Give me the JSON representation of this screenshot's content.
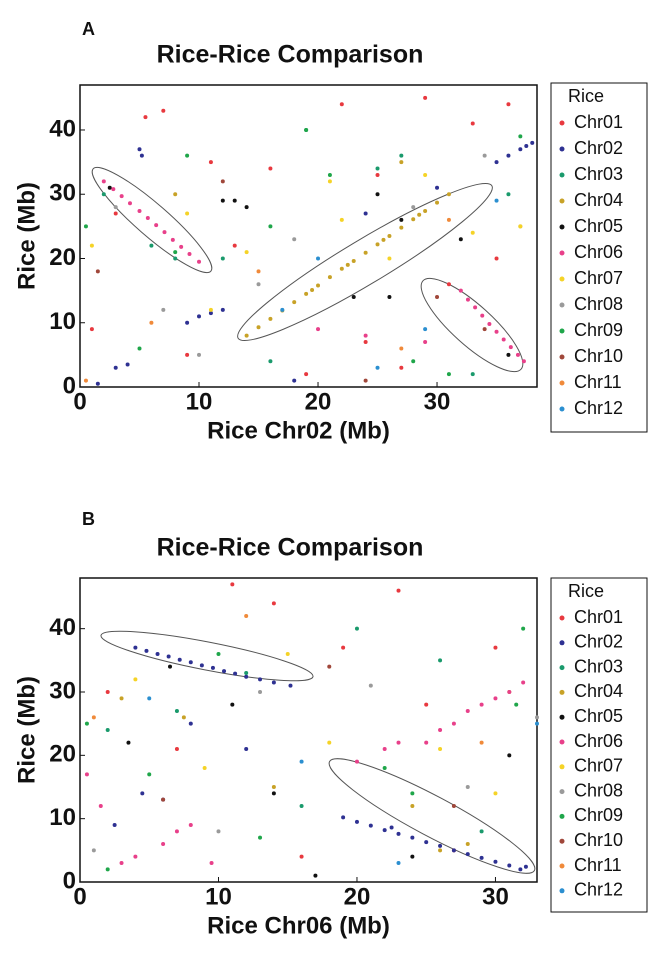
{
  "chart_data": [
    {
      "type": "scatter",
      "panel_label": "A",
      "title": "Rice-Rice Comparison",
      "xlabel": "Rice Chr02 (Mb)",
      "ylabel": "Rice (Mb)",
      "legend_title": "Rice",
      "xlim": [
        0,
        38.4
      ],
      "ylim": [
        0,
        47
      ],
      "xticks": [
        0,
        10,
        20,
        30
      ],
      "yticks": [
        0,
        10,
        20,
        30,
        40
      ],
      "series": [
        {
          "name": "Chr01",
          "color": "#e8393f",
          "x": [
            5.5,
            7,
            11,
            16,
            22,
            29,
            33,
            36,
            3,
            9,
            24,
            27,
            31,
            1,
            13,
            19,
            35,
            25
          ],
          "y": [
            42,
            43,
            35,
            34,
            44,
            45,
            41,
            44,
            27,
            5,
            7,
            3,
            16,
            9,
            22,
            2,
            20,
            33
          ]
        },
        {
          "name": "Chr02",
          "color": "#2e3192",
          "x": [
            5,
            5.2,
            35,
            36,
            37,
            37.5,
            38,
            9,
            10,
            11,
            12,
            3,
            4,
            18,
            1.5,
            24,
            30
          ],
          "y": [
            37,
            36,
            35,
            36,
            37,
            37.5,
            38,
            10,
            11,
            11.5,
            12,
            3,
            3.5,
            1,
            0.5,
            27,
            31
          ]
        },
        {
          "name": "Chr03",
          "color": "#1a9a6c",
          "x": [
            6,
            8,
            2,
            27,
            33,
            19,
            12,
            25,
            36,
            16
          ],
          "y": [
            22,
            20,
            30,
            36,
            2,
            40,
            20,
            34,
            30,
            4
          ]
        },
        {
          "name": "Chr04",
          "color": "#c8a227",
          "x": [
            14,
            15,
            16,
            17,
            18,
            19,
            20,
            21,
            22,
            23,
            24,
            25,
            26,
            27,
            28,
            29,
            30,
            31,
            19.5,
            22.5,
            25.5,
            28.5,
            27,
            37,
            8
          ],
          "y": [
            8,
            9.3,
            10.6,
            11.9,
            13.2,
            14.5,
            15.8,
            17.1,
            18.4,
            19.6,
            20.9,
            22.2,
            23.5,
            24.8,
            26.1,
            27.4,
            28.7,
            30,
            15.1,
            19,
            22.9,
            26.8,
            35,
            25,
            30
          ]
        },
        {
          "name": "Chr05",
          "color": "#111111",
          "x": [
            2.5,
            12,
            13,
            14,
            25,
            27,
            32,
            36,
            26,
            23
          ],
          "y": [
            31,
            29,
            29,
            28,
            30,
            26,
            23,
            5,
            14,
            14
          ]
        },
        {
          "name": "Chr06",
          "color": "#e8408a",
          "x": [
            2,
            2.8,
            3.5,
            4.2,
            5,
            5.7,
            6.4,
            7.1,
            7.8,
            8.5,
            9.2,
            10,
            32,
            32.6,
            33.2,
            33.8,
            34.4,
            35,
            35.6,
            36.2,
            36.8,
            37.3,
            20,
            24,
            29
          ],
          "y": [
            32,
            30.8,
            29.7,
            28.6,
            27.4,
            26.3,
            25.2,
            24.1,
            22.9,
            21.8,
            20.7,
            19.5,
            15,
            13.6,
            12.4,
            11.1,
            9.8,
            8.6,
            7.4,
            6.2,
            5,
            4,
            9,
            8,
            7
          ]
        },
        {
          "name": "Chr07",
          "color": "#f5d327",
          "x": [
            1,
            9,
            14,
            21,
            26,
            29,
            33,
            37,
            11,
            22
          ],
          "y": [
            22,
            27,
            21,
            32,
            20,
            33,
            24,
            25,
            12,
            26
          ]
        },
        {
          "name": "Chr08",
          "color": "#9a9a9a",
          "x": [
            3,
            10,
            18,
            28,
            34,
            15,
            7
          ],
          "y": [
            28,
            5,
            23,
            28,
            36,
            16,
            12
          ]
        },
        {
          "name": "Chr09",
          "color": "#1fa64a",
          "x": [
            0.5,
            5,
            8,
            19,
            21,
            31,
            37,
            16,
            28,
            9
          ],
          "y": [
            25,
            6,
            21,
            40,
            33,
            2,
            39,
            25,
            4,
            36
          ]
        },
        {
          "name": "Chr10",
          "color": "#a0473a",
          "x": [
            1.5,
            12,
            30,
            34,
            24
          ],
          "y": [
            18,
            32,
            14,
            9,
            1
          ]
        },
        {
          "name": "Chr11",
          "color": "#f08a3a",
          "x": [
            0.5,
            6,
            15,
            27,
            31
          ],
          "y": [
            1,
            10,
            18,
            6,
            26
          ]
        },
        {
          "name": "Chr12",
          "color": "#2b8fd0",
          "x": [
            17,
            20,
            25,
            29,
            35
          ],
          "y": [
            12,
            20,
            3,
            9,
            29
          ]
        }
      ]
    },
    {
      "type": "scatter",
      "panel_label": "B",
      "title": "Rice-Rice Comparison",
      "xlabel": "Rice Chr06 (Mb)",
      "ylabel": "Rice (Mb)",
      "legend_title": "Rice",
      "xlim": [
        0,
        33
      ],
      "ylim": [
        0,
        48
      ],
      "xticks": [
        0,
        10,
        20,
        30
      ],
      "yticks": [
        0,
        10,
        20,
        30,
        40
      ],
      "series": [
        {
          "name": "Chr01",
          "color": "#e8393f",
          "x": [
            11,
            14,
            23,
            19,
            27,
            2,
            7,
            30,
            25,
            16
          ],
          "y": [
            47,
            44,
            46,
            37,
            5,
            30,
            21,
            37,
            28,
            4
          ]
        },
        {
          "name": "Chr02",
          "color": "#2e3192",
          "x": [
            4,
            4.8,
            5.6,
            6.4,
            7.2,
            8,
            8.8,
            9.6,
            10.4,
            11.2,
            12,
            13,
            14,
            15.2,
            19,
            20,
            21,
            22,
            23,
            24,
            25,
            26,
            27,
            28,
            29,
            30,
            31,
            31.8,
            32.2,
            22.5,
            2.5,
            4.5,
            6,
            8,
            12
          ],
          "y": [
            37,
            36.5,
            36,
            35.6,
            35.1,
            34.7,
            34.2,
            33.8,
            33.3,
            32.9,
            32.4,
            32,
            31.5,
            31,
            10.2,
            9.5,
            8.9,
            8.2,
            7.6,
            7,
            6.3,
            5.7,
            5,
            4.4,
            3.8,
            3.2,
            2.6,
            2,
            2.4,
            8.6,
            9,
            14,
            13,
            25,
            21
          ]
        },
        {
          "name": "Chr03",
          "color": "#1a9a6c",
          "x": [
            2,
            12,
            20,
            26,
            29,
            7,
            16
          ],
          "y": [
            24,
            33,
            40,
            35,
            8,
            27,
            12
          ]
        },
        {
          "name": "Chr04",
          "color": "#c8a227",
          "x": [
            3,
            7.5,
            14,
            24,
            31,
            26,
            28
          ],
          "y": [
            29,
            26,
            15,
            12,
            30,
            5,
            6
          ]
        },
        {
          "name": "Chr05",
          "color": "#111111",
          "x": [
            3.5,
            11,
            14,
            31,
            24,
            6.5,
            17
          ],
          "y": [
            22,
            28,
            14,
            20,
            4,
            34,
            1
          ]
        },
        {
          "name": "Chr06",
          "color": "#e8408a",
          "x": [
            0.5,
            1.5,
            3,
            4,
            6,
            7,
            8,
            9.5,
            25,
            26,
            27,
            28,
            29,
            30,
            31,
            32,
            20,
            22,
            23
          ],
          "y": [
            17,
            12,
            3,
            4,
            6,
            8,
            9,
            3,
            22,
            24,
            25,
            27,
            28,
            29,
            30,
            31.5,
            19,
            21,
            22
          ]
        },
        {
          "name": "Chr07",
          "color": "#f5d327",
          "x": [
            4,
            9,
            15,
            18,
            26,
            30
          ],
          "y": [
            32,
            18,
            36,
            22,
            21,
            14
          ]
        },
        {
          "name": "Chr08",
          "color": "#9a9a9a",
          "x": [
            1,
            10,
            13,
            21,
            28,
            33
          ],
          "y": [
            5,
            8,
            30,
            31,
            15,
            26
          ]
        },
        {
          "name": "Chr09",
          "color": "#1fa64a",
          "x": [
            0.5,
            2,
            5,
            10,
            13,
            22,
            24,
            32,
            31.5
          ],
          "y": [
            25,
            2,
            17,
            36,
            7,
            18,
            14,
            40,
            28
          ]
        },
        {
          "name": "Chr10",
          "color": "#a0473a",
          "x": [
            6,
            18,
            27
          ],
          "y": [
            13,
            34,
            12
          ]
        },
        {
          "name": "Chr11",
          "color": "#f08a3a",
          "x": [
            1,
            12,
            29
          ],
          "y": [
            26,
            42,
            22
          ]
        },
        {
          "name": "Chr12",
          "color": "#2b8fd0",
          "x": [
            5,
            16,
            23,
            33
          ],
          "y": [
            29,
            19,
            3,
            25
          ]
        }
      ]
    }
  ]
}
